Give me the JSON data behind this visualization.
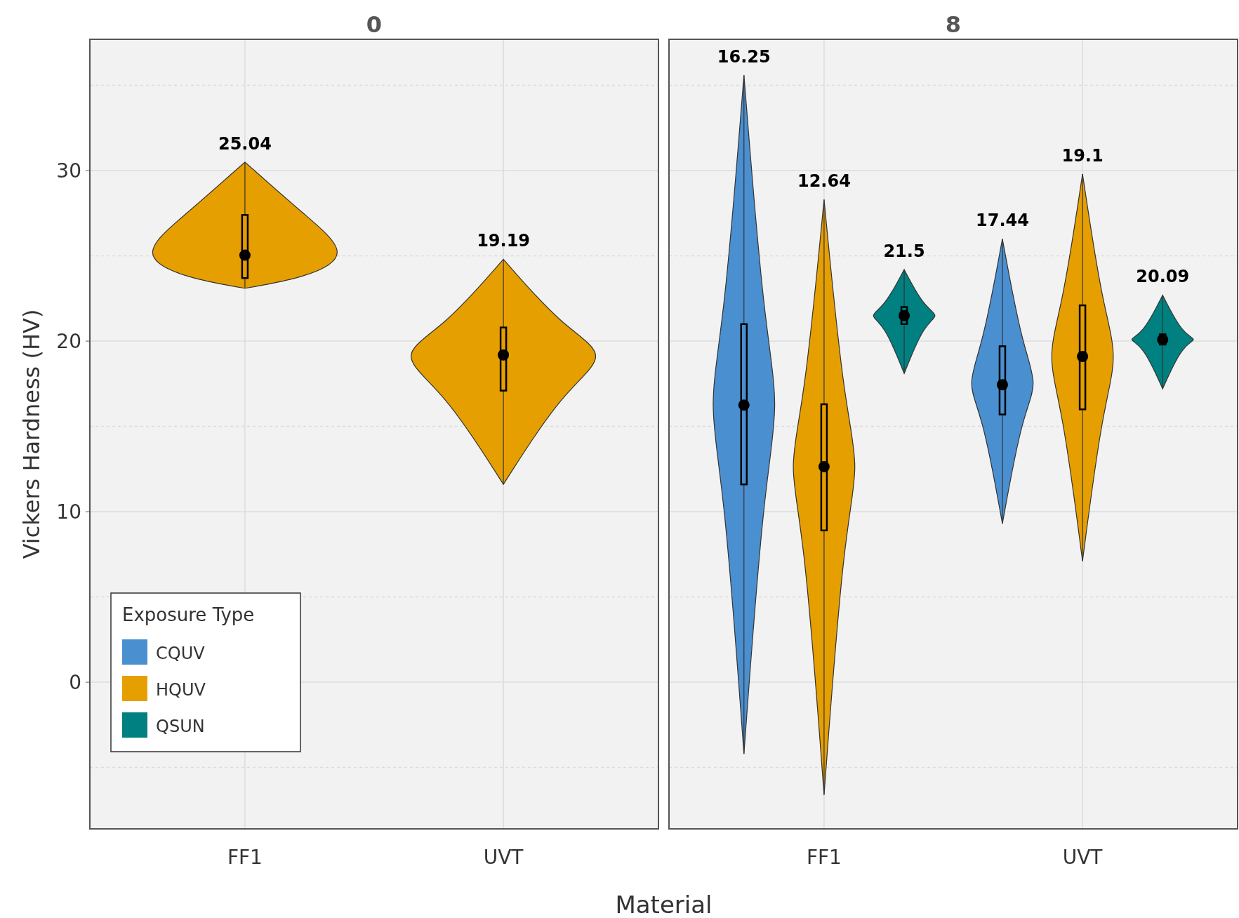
{
  "chart_data": [
    {
      "type": "box",
      "title": "0",
      "ylabel": "Vickers Hardness (HV)",
      "xlabel": "Material",
      "grid": true,
      "categories": [
        "FF1",
        "UVT"
      ],
      "ylim": [
        -8.6,
        37.7
      ],
      "yticks": [
        0,
        10,
        20,
        30
      ],
      "series": [
        {
          "color": "#e69f00",
          "boxes": [
            {
              "low": 23.1,
              "q1": 23.7,
              "median": 25.04,
              "q3": 27.4,
              "high": 30.5
            },
            {
              "low": 11.6,
              "q1": 17.1,
              "median": 19.19,
              "q3": 20.8,
              "high": 24.8
            }
          ],
          "value_labels": [
            "25.04",
            "19.19"
          ]
        }
      ]
    },
    {
      "type": "box",
      "title": "8",
      "grid": true,
      "legend": "bottom left",
      "legend_title": "Exposure Type",
      "tick_labels": "x",
      "categories": [
        "FF1",
        "UVT"
      ],
      "ylim": [
        -8.6,
        37.7
      ],
      "series": [
        {
          "name": "CQUV",
          "color": "#4a8fd0",
          "boxes": [
            {
              "low": -4.2,
              "q1": 11.6,
              "median": 16.25,
              "q3": 21.0,
              "high": 35.6
            },
            {
              "low": 9.3,
              "q1": 15.7,
              "median": 17.44,
              "q3": 19.7,
              "high": 26.0
            }
          ],
          "value_labels": [
            "16.25",
            "17.44"
          ]
        },
        {
          "name": "HQUV",
          "color": "#e69f00",
          "boxes": [
            {
              "low": -6.6,
              "q1": 8.9,
              "median": 12.64,
              "q3": 16.3,
              "high": 28.3
            },
            {
              "low": 7.1,
              "q1": 16.0,
              "median": 19.1,
              "q3": 22.1,
              "high": 29.8
            }
          ],
          "value_labels": [
            "12.64",
            "19.1"
          ]
        },
        {
          "name": "QSUN",
          "color": "#008080",
          "boxes": [
            {
              "low": 18.1,
              "q1": 21.0,
              "median": 21.5,
              "q3": 22.0,
              "high": 24.2
            },
            {
              "low": 17.2,
              "q1": 19.8,
              "median": 20.09,
              "q3": 20.4,
              "high": 22.7
            }
          ],
          "value_labels": [
            "21.5",
            "20.09"
          ]
        }
      ]
    }
  ]
}
